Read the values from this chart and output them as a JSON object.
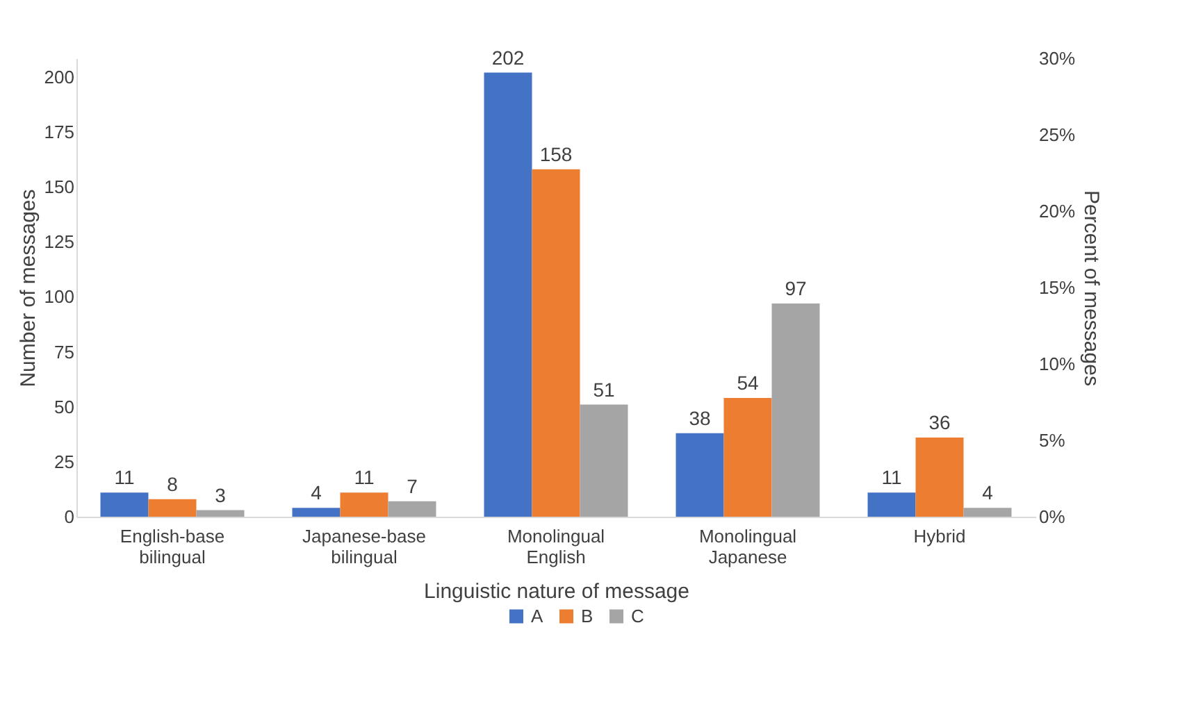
{
  "chart_data": {
    "type": "bar",
    "xlabel": "Linguistic nature of message",
    "ylabel": "Number of messages",
    "y2label": "Percent of messages",
    "categories": [
      "English-base bilingual",
      "Japanese-base bilingual",
      "Monolingual English",
      "Monolingual Japanese",
      "Hybrid"
    ],
    "series": [
      {
        "name": "A",
        "color": "#4472c4",
        "values": [
          11,
          4,
          202,
          38,
          11
        ]
      },
      {
        "name": "B",
        "color": "#ed7d31",
        "values": [
          8,
          11,
          158,
          54,
          36
        ]
      },
      {
        "name": "C",
        "color": "#a5a5a5",
        "values": [
          3,
          7,
          51,
          97,
          4
        ]
      }
    ],
    "ylim": [
      0,
      208.5
    ],
    "yticks": [
      0,
      25,
      50,
      75,
      100,
      125,
      150,
      175,
      200
    ],
    "y2lim": [
      0,
      30
    ],
    "y2ticks": [
      {
        "value": 0,
        "label": "0%"
      },
      {
        "value": 5,
        "label": "5%"
      },
      {
        "value": 10,
        "label": "10%"
      },
      {
        "value": 15,
        "label": "15%"
      },
      {
        "value": 20,
        "label": "20%"
      },
      {
        "value": 25,
        "label": "25%"
      },
      {
        "value": 30,
        "label": "30%"
      }
    ],
    "data_labels": true,
    "grid": false,
    "legend": "bottom"
  }
}
